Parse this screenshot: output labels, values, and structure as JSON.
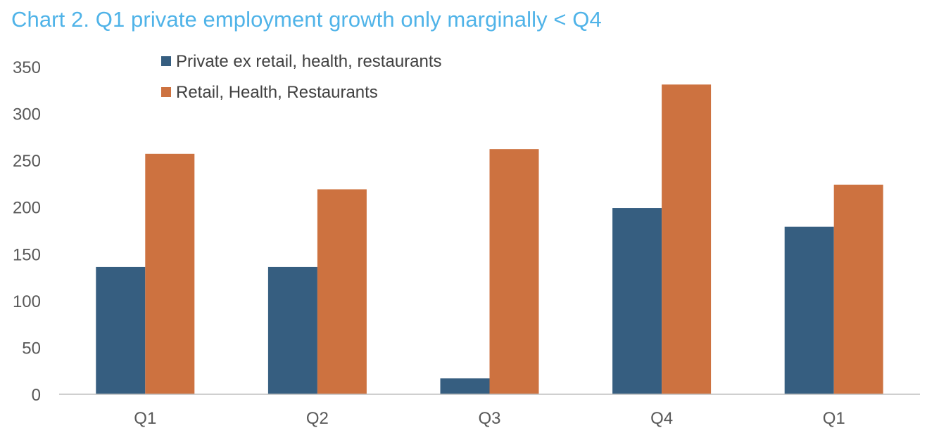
{
  "chart_data": {
    "type": "bar",
    "title": "Chart 2. Q1 private employment growth only marginally < Q4",
    "categories": [
      "Q1",
      "Q2",
      "Q3",
      "Q4",
      "Q1"
    ],
    "series": [
      {
        "name": "Private ex retail, health, restaurants",
        "color": "#365e80",
        "values": [
          136,
          136,
          17,
          199,
          179
        ]
      },
      {
        "name": "Retail, Health, Restaurants",
        "color": "#cd7240",
        "values": [
          257,
          219,
          262,
          331,
          224
        ]
      }
    ],
    "xlabel": "",
    "ylabel": "",
    "ylim": [
      0,
      350
    ],
    "yticks": [
      "0",
      "50",
      "100",
      "150",
      "200",
      "250",
      "300",
      "350"
    ],
    "ytick_values": [
      0,
      50,
      100,
      150,
      200,
      250,
      300,
      350
    ],
    "grid": false,
    "legend_position": "top-left"
  }
}
